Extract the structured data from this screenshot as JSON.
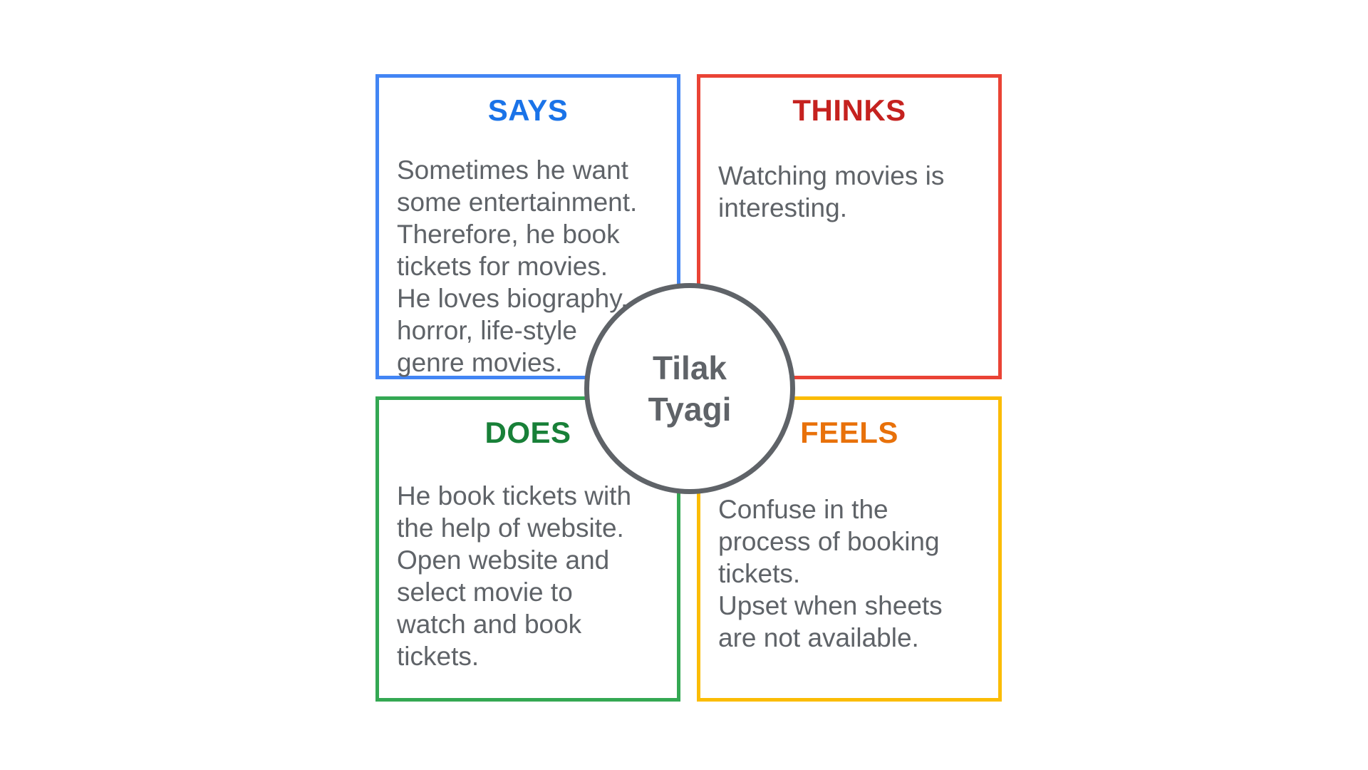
{
  "colors": {
    "says_border": "#4285f4",
    "says_title": "#1a73e8",
    "thinks_border": "#ea4335",
    "thinks_title": "#c5221f",
    "does_border": "#34a853",
    "does_title": "#188038",
    "feels_border": "#fbbc04",
    "feels_title": "#e8710a",
    "body_text": "#5f6368",
    "center_border": "#5f6368"
  },
  "center": {
    "name_lines": [
      "Tilak",
      "Tyagi"
    ]
  },
  "quadrants": {
    "says": {
      "title": "SAYS",
      "lines": [
        "Sometimes he want",
        "some entertainment.",
        "Therefore, he book",
        "tickets for movies.",
        "He loves biography,",
        "horror, life-style",
        "genre movies."
      ]
    },
    "thinks": {
      "title": "THINKS",
      "lines": [
        "Watching movies is",
        "interesting."
      ]
    },
    "does": {
      "title": "DOES",
      "lines": [
        "He book tickets with",
        "the help of website.",
        "Open website and",
        "select movie to",
        "watch and book",
        "tickets."
      ]
    },
    "feels": {
      "title": "FEELS",
      "lines": [
        "Confuse in the",
        "process of booking",
        "tickets.",
        "Upset when sheets",
        "are not available."
      ]
    }
  }
}
